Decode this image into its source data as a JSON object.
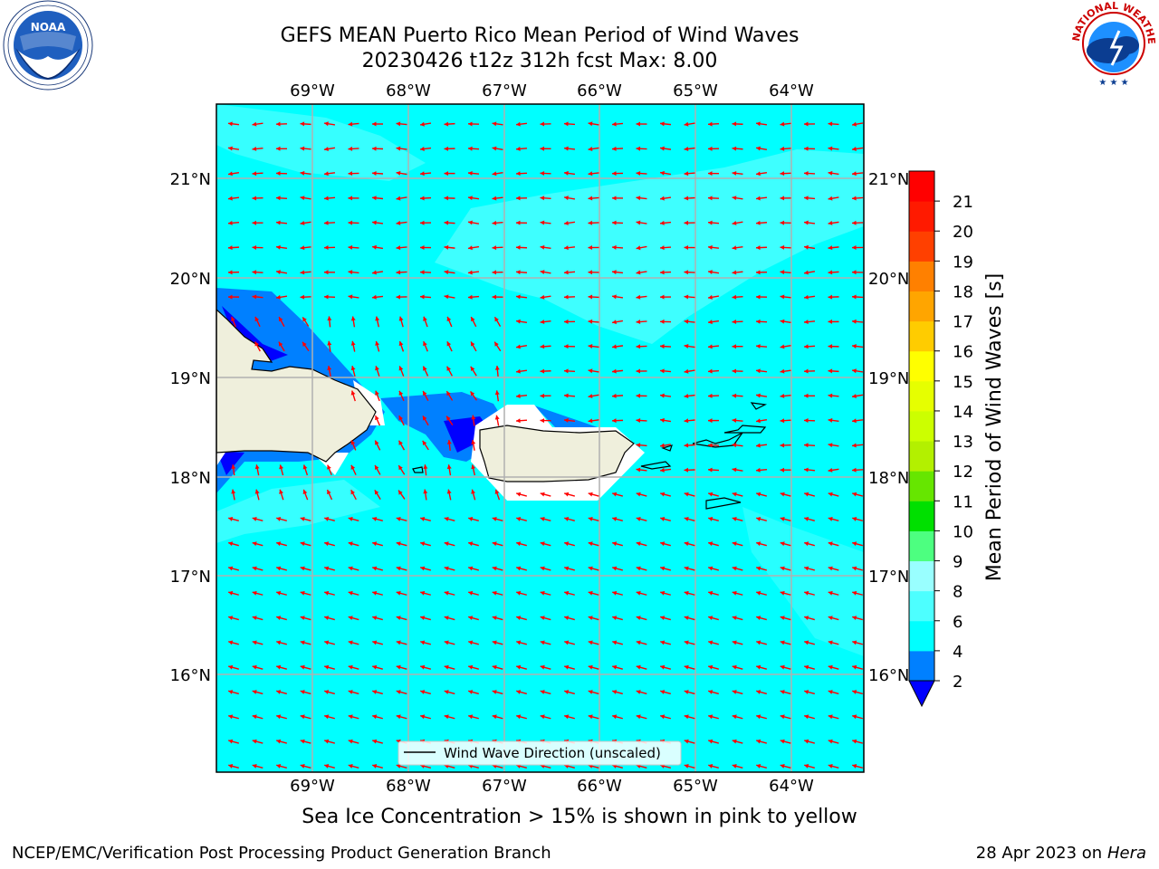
{
  "header": {
    "title_line1": "GEFS MEAN Puerto Rico Mean Period of Wind Waves",
    "title_line2": "20230426 t12z 312h fcst   Max: 8.00"
  },
  "logos": {
    "left": {
      "name": "NOAA",
      "ring_text": "NATIONAL OCEANIC AND ATMOSPHERIC ADMINISTRATION · U.S. DEPARTMENT OF COMMERCE"
    },
    "right": {
      "name": "NATIONAL WEATHER SERVICE"
    }
  },
  "map": {
    "lon_labels": [
      "69°W",
      "68°W",
      "67°W",
      "66°W",
      "65°W",
      "64°W"
    ],
    "lat_labels": [
      "21°N",
      "20°N",
      "19°N",
      "18°N",
      "17°N",
      "16°N"
    ],
    "legend_label": "Wind Wave Direction (unscaled)",
    "colors": {
      "ocean": "#00ffff",
      "ocean_light": "#4dffff",
      "land": "#efefdc",
      "arrow": "#ff0000",
      "grid": "#b0b0b0"
    }
  },
  "colorbar": {
    "label": "Mean Period of Wind Waves [s]",
    "ticks": [
      "2",
      "4",
      "6",
      "8",
      "9",
      "10",
      "11",
      "12",
      "13",
      "14",
      "15",
      "16",
      "17",
      "18",
      "19",
      "20",
      "21"
    ],
    "colors": [
      "#0000ff",
      "#0080ff",
      "#00ffff",
      "#4dffff",
      "#99ffff",
      "#4dff80",
      "#00e000",
      "#66e600",
      "#b3f000",
      "#ccff00",
      "#e6ff00",
      "#ffff00",
      "#ffcc00",
      "#ffa500",
      "#ff8000",
      "#ff4000",
      "#ff1a00",
      "#ff0000"
    ]
  },
  "sea_ice_note": "Sea Ice Concentration > 15% is shown in pink to yellow",
  "footer": {
    "left": "NCEP/EMC/Verification Post Processing Product Generation Branch",
    "right_prefix": "28 Apr 2023 on ",
    "right_host": "Hera"
  }
}
